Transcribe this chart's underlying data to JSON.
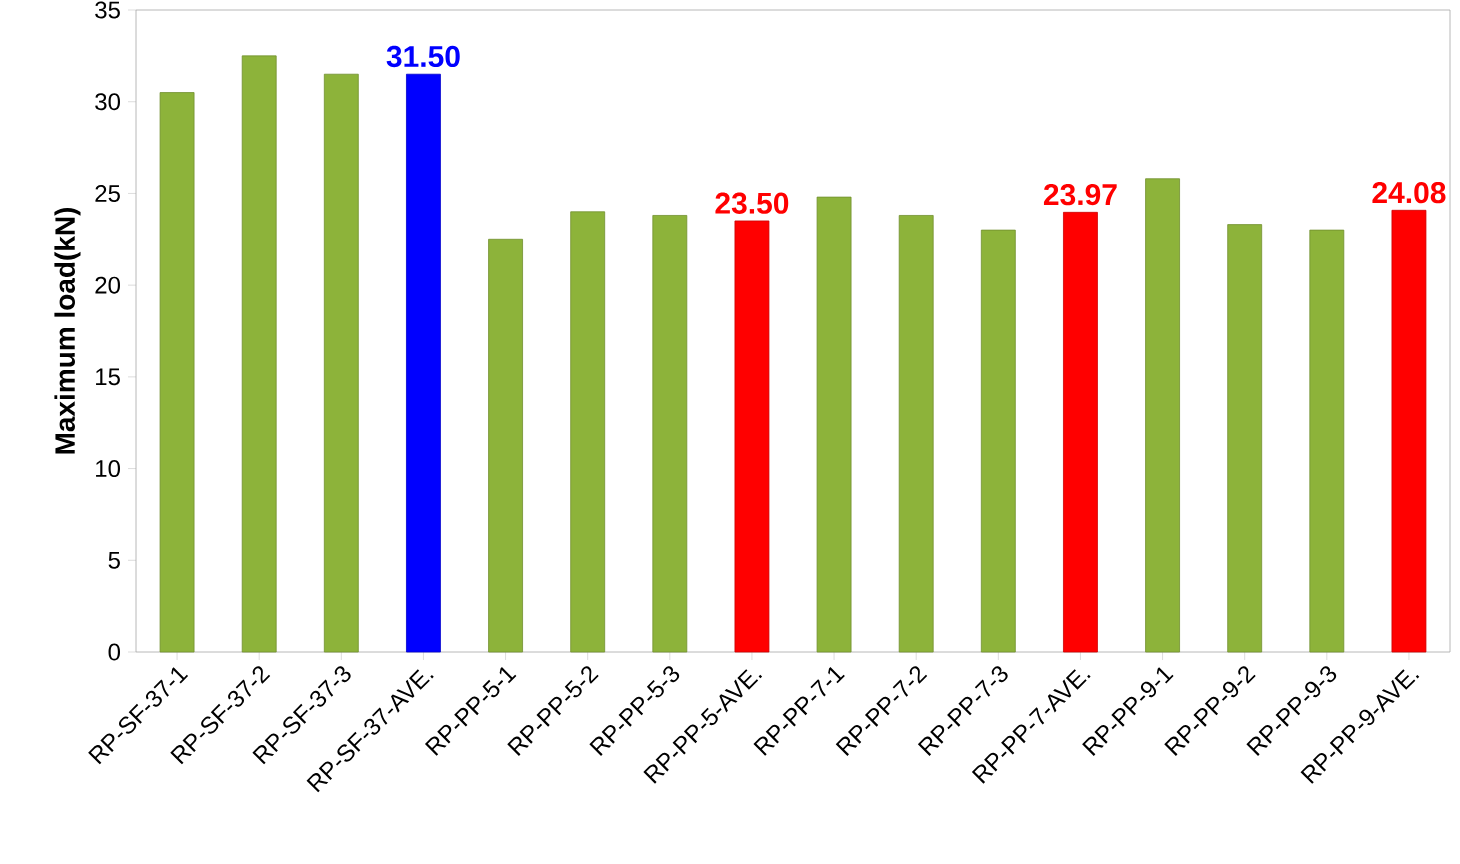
{
  "chart_data": {
    "type": "bar",
    "ylabel": "Maximum load(kN)",
    "categories": [
      "RP-SF-37-1",
      "RP-SF-37-2",
      "RP-SF-37-3",
      "RP-SF-37-AVE.",
      "RP-PP-5-1",
      "RP-PP-5-2",
      "RP-PP-5-3",
      "RP-PP-5-AVE.",
      "RP-PP-7-1",
      "RP-PP-7-2",
      "RP-PP-7-3",
      "RP-PP-7-AVE.",
      "RP-PP-9-1",
      "RP-PP-9-2",
      "RP-PP-9-3",
      "RP-PP-9-AVE."
    ],
    "values": [
      30.5,
      32.5,
      31.5,
      31.5,
      22.5,
      24.0,
      23.8,
      23.5,
      24.8,
      23.8,
      23.0,
      23.97,
      25.8,
      23.3,
      23.0,
      24.08
    ],
    "value_labels": [
      null,
      null,
      null,
      "31.50",
      null,
      null,
      null,
      "23.50",
      null,
      null,
      null,
      "23.97",
      null,
      null,
      null,
      "24.08"
    ],
    "colors": [
      "#8db33a",
      "#8db33a",
      "#8db33a",
      "#0000ff",
      "#8db33a",
      "#8db33a",
      "#8db33a",
      "#ff0000",
      "#8db33a",
      "#8db33a",
      "#8db33a",
      "#ff0000",
      "#8db33a",
      "#8db33a",
      "#8db33a",
      "#ff0000"
    ],
    "ylim": [
      0,
      35
    ],
    "yticks": [
      0,
      5,
      10,
      15,
      20,
      25,
      30,
      35
    ],
    "grid": false
  }
}
